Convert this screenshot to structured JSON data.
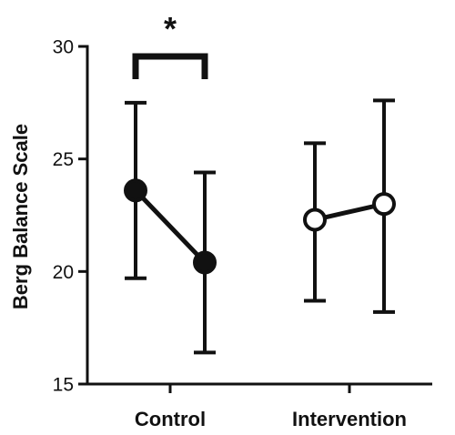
{
  "chart_data": {
    "type": "line",
    "ylabel": "Berg Balance Scale",
    "ylim": [
      15,
      30
    ],
    "yticks": [
      "15",
      "20",
      "25",
      "30"
    ],
    "categories": [
      "Control",
      "Intervention"
    ],
    "groups": [
      {
        "name": "Control",
        "marker": "filled",
        "points": [
          {
            "mean": 23.6,
            "lower": 19.7,
            "upper": 27.5
          },
          {
            "mean": 20.4,
            "lower": 16.4,
            "upper": 24.4
          }
        ]
      },
      {
        "name": "Intervention",
        "marker": "open",
        "points": [
          {
            "mean": 22.3,
            "lower": 18.7,
            "upper": 25.7
          },
          {
            "mean": 23.0,
            "lower": 18.2,
            "upper": 27.6
          }
        ]
      }
    ],
    "significance": [
      {
        "group": "Control",
        "label": "*"
      }
    ],
    "grid": false,
    "colors": {
      "ink": "#111111",
      "open_fill": "#ffffff"
    }
  }
}
